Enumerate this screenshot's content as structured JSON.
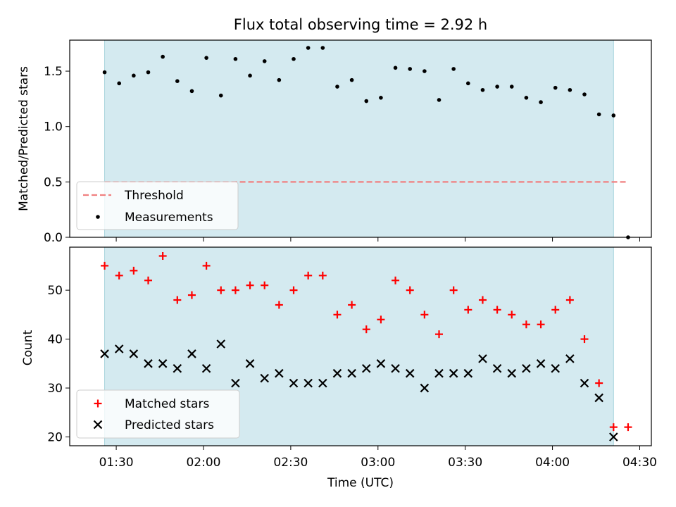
{
  "chart_data": [
    {
      "type": "scatter",
      "title": "Flux total observing time = 2.92 h",
      "ylabel": "Matched/Predicted stars",
      "xlabel": "",
      "ylim": [
        0,
        1.78
      ],
      "yticks": [
        "0.0",
        "0.5",
        "1.0",
        "1.5"
      ],
      "observing_window": [
        "01:26",
        "04:21"
      ],
      "legend_position": "lower-left",
      "threshold": {
        "name": "Threshold",
        "value": 0.5,
        "x_range": [
          "01:26",
          "04:26"
        ],
        "color": "#f08080"
      },
      "series": [
        {
          "name": "Measurements",
          "color": "#000000",
          "x": [
            "01:26",
            "01:31",
            "01:36",
            "01:41",
            "01:46",
            "01:51",
            "01:56",
            "02:01",
            "02:06",
            "02:11",
            "02:16",
            "02:21",
            "02:26",
            "02:31",
            "02:36",
            "02:41",
            "02:46",
            "02:51",
            "02:56",
            "03:01",
            "03:06",
            "03:11",
            "03:16",
            "03:21",
            "03:26",
            "03:31",
            "03:36",
            "03:41",
            "03:46",
            "03:51",
            "03:56",
            "04:01",
            "04:06",
            "04:11",
            "04:16",
            "04:21",
            "04:26"
          ],
          "values": [
            1.49,
            1.39,
            1.46,
            1.49,
            1.63,
            1.41,
            1.32,
            1.62,
            1.28,
            1.61,
            1.46,
            1.59,
            1.42,
            1.61,
            1.71,
            1.71,
            1.36,
            1.42,
            1.23,
            1.26,
            1.53,
            1.52,
            1.5,
            1.24,
            1.52,
            1.39,
            1.33,
            1.36,
            1.36,
            1.26,
            1.22,
            1.35,
            1.33,
            1.29,
            1.11,
            1.1,
            0.0
          ]
        }
      ]
    },
    {
      "type": "scatter",
      "title": "",
      "ylabel": "Count",
      "xlabel": "Time (UTC)",
      "ylim": [
        18.2,
        58.8
      ],
      "yticks": [
        20,
        30,
        40,
        50
      ],
      "xticks": [
        "01:30",
        "02:00",
        "02:30",
        "03:00",
        "03:30",
        "04:00",
        "04:30"
      ],
      "observing_window": [
        "01:26",
        "04:21"
      ],
      "legend_position": "lower-left",
      "series": [
        {
          "name": "Matched stars",
          "color": "#ff0000",
          "marker": "plus",
          "x": [
            "01:26",
            "01:31",
            "01:36",
            "01:41",
            "01:46",
            "01:51",
            "01:56",
            "02:01",
            "02:06",
            "02:11",
            "02:16",
            "02:21",
            "02:26",
            "02:31",
            "02:36",
            "02:41",
            "02:46",
            "02:51",
            "02:56",
            "03:01",
            "03:06",
            "03:11",
            "03:16",
            "03:21",
            "03:26",
            "03:31",
            "03:36",
            "03:41",
            "03:46",
            "03:51",
            "03:56",
            "04:01",
            "04:06",
            "04:11",
            "04:16",
            "04:21",
            "04:26"
          ],
          "values": [
            55,
            53,
            54,
            52,
            57,
            48,
            49,
            55,
            50,
            50,
            51,
            51,
            47,
            50,
            53,
            53,
            45,
            47,
            42,
            44,
            52,
            50,
            45,
            41,
            50,
            46,
            48,
            46,
            45,
            43,
            43,
            46,
            48,
            40,
            31,
            22,
            22
          ]
        },
        {
          "name": "Predicted stars",
          "color": "#000000",
          "marker": "x",
          "x": [
            "01:26",
            "01:31",
            "01:36",
            "01:41",
            "01:46",
            "01:51",
            "01:56",
            "02:01",
            "02:06",
            "02:11",
            "02:16",
            "02:21",
            "02:26",
            "02:31",
            "02:36",
            "02:41",
            "02:46",
            "02:51",
            "02:56",
            "03:01",
            "03:06",
            "03:11",
            "03:16",
            "03:21",
            "03:26",
            "03:31",
            "03:36",
            "03:41",
            "03:46",
            "03:51",
            "03:56",
            "04:01",
            "04:06",
            "04:11",
            "04:16",
            "04:21"
          ],
          "values": [
            37,
            38,
            37,
            35,
            35,
            34,
            37,
            34,
            39,
            31,
            35,
            32,
            33,
            31,
            31,
            31,
            33,
            33,
            34,
            35,
            34,
            33,
            30,
            33,
            33,
            33,
            36,
            34,
            33,
            34,
            35,
            34,
            36,
            31,
            28,
            20
          ]
        }
      ]
    }
  ],
  "colors": {
    "window_fill": "#d4eaf0",
    "window_edge": "#a8d4dd"
  }
}
